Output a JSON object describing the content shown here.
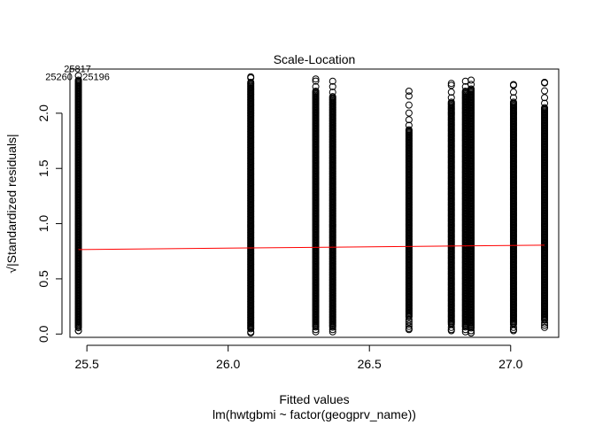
{
  "chart_data": {
    "type": "scatter",
    "title": "Scale-Location",
    "xlabel": "Fitted values",
    "subtitle": "lm(hwtgbmi ~ factor(geogprv_name))",
    "ylabel": "√|Standardized residuals|",
    "xlim": [
      25.44,
      27.17
    ],
    "ylim": [
      -0.03,
      2.4
    ],
    "x_ticks": [
      {
        "value": 25.5,
        "label": "25.5"
      },
      {
        "value": 26.0,
        "label": "26.0"
      },
      {
        "value": 26.5,
        "label": "26.5"
      },
      {
        "value": 27.0,
        "label": "27.0"
      }
    ],
    "y_ticks": [
      {
        "value": 0.0,
        "label": "0.0"
      },
      {
        "value": 0.5,
        "label": "0.5"
      },
      {
        "value": 1.0,
        "label": "1.0"
      },
      {
        "value": 1.5,
        "label": "1.5"
      },
      {
        "value": 2.0,
        "label": "2.0"
      }
    ],
    "groups": [
      {
        "x": 25.47,
        "ymin": 0.03,
        "ymax": 2.34,
        "dense_from": 0.05,
        "dense_to": 2.3
      },
      {
        "x": 26.08,
        "ymin": 0.01,
        "ymax": 2.33,
        "dense_from": 0.04,
        "dense_to": 2.28
      },
      {
        "x": 26.31,
        "ymin": 0.02,
        "ymax": 2.31,
        "dense_from": 0.06,
        "dense_to": 2.2
      },
      {
        "x": 26.37,
        "ymin": 0.02,
        "ymax": 2.29,
        "dense_from": 0.06,
        "dense_to": 2.15
      },
      {
        "x": 26.64,
        "ymin": 0.04,
        "ymax": 2.2,
        "dense_from": 0.15,
        "dense_to": 1.85
      },
      {
        "x": 26.79,
        "ymin": 0.03,
        "ymax": 2.27,
        "dense_from": 0.08,
        "dense_to": 2.1
      },
      {
        "x": 26.84,
        "ymin": 0.02,
        "ymax": 2.29,
        "dense_from": 0.06,
        "dense_to": 2.2
      },
      {
        "x": 26.86,
        "ymin": 0.01,
        "ymax": 2.3,
        "dense_from": 0.05,
        "dense_to": 2.22
      },
      {
        "x": 27.01,
        "ymin": 0.03,
        "ymax": 2.26,
        "dense_from": 0.08,
        "dense_to": 2.1
      },
      {
        "x": 27.12,
        "ymin": 0.06,
        "ymax": 2.28,
        "dense_from": 0.12,
        "dense_to": 2.05
      }
    ],
    "smoother": {
      "color": "#ff0000",
      "x": [
        25.47,
        27.12
      ],
      "y": [
        0.765,
        0.805
      ]
    },
    "annotations": [
      {
        "label": "25817",
        "x": 25.47,
        "y": 2.38
      },
      {
        "label": "25260",
        "x": 25.47,
        "y": 2.34
      },
      {
        "label": "25196",
        "x": 25.47,
        "y": 2.34
      }
    ]
  }
}
